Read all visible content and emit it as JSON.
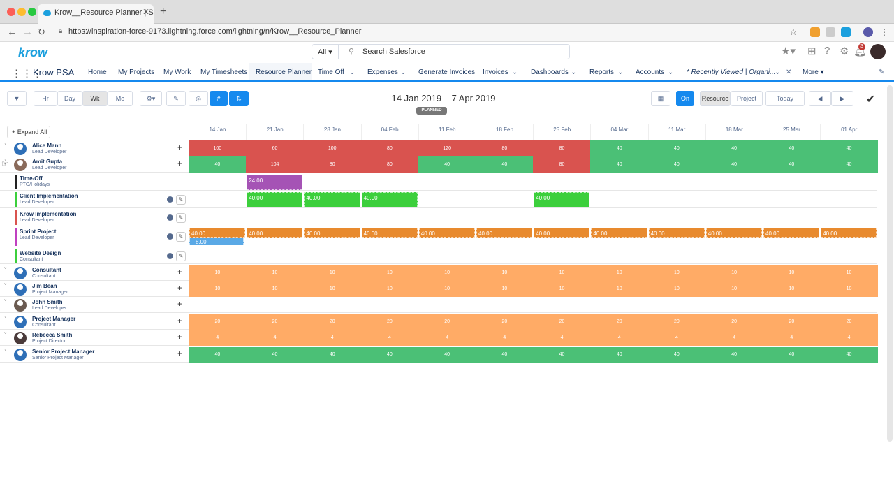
{
  "browser": {
    "tab_title": "Krow__Resource Planner | Sal",
    "url": "https://inspiration-force-9173.lightning.force.com/lightning/n/Krow__Resource_Planner"
  },
  "header": {
    "logo": "krow",
    "search_scope": "All",
    "search_placeholder": "Search Salesforce",
    "notification_count": "3"
  },
  "nav": {
    "app_name": "Krow PSA",
    "items": [
      "Home",
      "My Projects",
      "My Work",
      "My Timesheets",
      "Resource Planner",
      "Time Off",
      "Expenses",
      "Generate Invoices",
      "Invoices",
      "Dashboards",
      "Reports",
      "Accounts",
      "* Recently Viewed | Organi...",
      "More"
    ]
  },
  "toolbar": {
    "hr": "Hr",
    "day": "Day",
    "wk": "Wk",
    "mo": "Mo",
    "date_range": "14 Jan 2019 – 7 Apr 2019",
    "status_badge": "PLANNED",
    "on_toggle": "On",
    "resource_btn": "Resource",
    "project_btn": "Project",
    "today_btn": "Today",
    "expand_all": "Expand All",
    "hash_icon": "#"
  },
  "columns": [
    "14 Jan",
    "21 Jan",
    "28 Jan",
    "04 Feb",
    "11 Feb",
    "18 Feb",
    "25 Feb",
    "04 Mar",
    "11 Mar",
    "18 Mar",
    "25 Mar",
    "01 Apr"
  ],
  "colors": {
    "red": "#d9534f",
    "green": "#4bc076",
    "orange": "#ffab66",
    "proj_orange": "#e88a2e",
    "proj_green": "#3ccf3c",
    "purple": "#a553b5",
    "blue": "#5aa9e6"
  },
  "rows": [
    {
      "name": "Alice Mann",
      "role": "Lead Developer",
      "type": "resource",
      "values": [
        "100",
        "60",
        "100",
        "80",
        "120",
        "80",
        "80",
        "40",
        "40",
        "40",
        "40",
        "40"
      ],
      "colors": [
        "red",
        "red",
        "red",
        "red",
        "red",
        "red",
        "red",
        "green",
        "green",
        "green",
        "green",
        "green"
      ]
    },
    {
      "name": "Amit Gupta",
      "role": "Lead Developer",
      "type": "resource",
      "values": [
        "40",
        "104",
        "80",
        "80",
        "40",
        "40",
        "80",
        "40",
        "40",
        "40",
        "40",
        "40"
      ],
      "colors": [
        "green",
        "red",
        "red",
        "red",
        "green",
        "green",
        "red",
        "green",
        "green",
        "green",
        "green",
        "green"
      ]
    },
    {
      "name": "Time-Off",
      "role": "PTO/Holidays",
      "type": "project",
      "stripe": "#222",
      "cells": [
        {
          "col": 1,
          "span": 1,
          "value": "24.00",
          "color": "purple"
        }
      ]
    },
    {
      "name": "Client Implementation",
      "role": "Lead Developer",
      "type": "project",
      "stripe": "#3ccf3c",
      "info": true,
      "cells": [
        {
          "col": 1,
          "value": "40.00",
          "color": "proj_green"
        },
        {
          "col": 2,
          "value": "40.00",
          "color": "proj_green"
        },
        {
          "col": 3,
          "value": "40.00",
          "color": "proj_green"
        },
        {
          "col": 6,
          "value": "40.00",
          "color": "proj_green"
        }
      ]
    },
    {
      "name": "Krow Implementation",
      "role": "Lead Developer",
      "type": "project",
      "stripe": "#d9534f",
      "info": true,
      "cells": []
    },
    {
      "name": "Sprint Project",
      "role": "Lead Developer",
      "type": "project",
      "stripe": "#c040c0",
      "info": true,
      "cells": [
        {
          "col": 0,
          "value": "40.00",
          "color": "proj_orange"
        },
        {
          "col": 1,
          "value": "40.00",
          "color": "proj_orange"
        },
        {
          "col": 2,
          "value": "40.00",
          "color": "proj_orange"
        },
        {
          "col": 3,
          "value": "40.00",
          "color": "proj_orange"
        },
        {
          "col": 4,
          "value": "40.00",
          "color": "proj_orange"
        },
        {
          "col": 5,
          "value": "40.00",
          "color": "proj_orange"
        },
        {
          "col": 6,
          "value": "40.00",
          "color": "proj_orange"
        },
        {
          "col": 7,
          "value": "40.00",
          "color": "proj_orange"
        },
        {
          "col": 8,
          "value": "40.00",
          "color": "proj_orange"
        },
        {
          "col": 9,
          "value": "40.00",
          "color": "proj_orange"
        },
        {
          "col": 10,
          "value": "40.00",
          "color": "proj_orange"
        },
        {
          "col": 11,
          "value": "40.00",
          "color": "proj_orange"
        }
      ],
      "sub": {
        "col": 0,
        "value": "8.00",
        "color": "blue"
      }
    },
    {
      "name": "Website Design",
      "role": "Consultant",
      "type": "project",
      "stripe": "#3ccf3c",
      "info": true,
      "cells": []
    },
    {
      "name": "Consultant",
      "role": "Consultant",
      "type": "resource",
      "values": [
        "10",
        "10",
        "10",
        "10",
        "10",
        "10",
        "10",
        "10",
        "10",
        "10",
        "10",
        "10"
      ],
      "colors": [
        "orange",
        "orange",
        "orange",
        "orange",
        "orange",
        "orange",
        "orange",
        "orange",
        "orange",
        "orange",
        "orange",
        "orange"
      ]
    },
    {
      "name": "Jim Bean",
      "role": "Project Manager",
      "type": "resource",
      "values": [
        "10",
        "10",
        "10",
        "10",
        "10",
        "10",
        "10",
        "10",
        "10",
        "10",
        "10",
        "10"
      ],
      "colors": [
        "orange",
        "orange",
        "orange",
        "orange",
        "orange",
        "orange",
        "orange",
        "orange",
        "orange",
        "orange",
        "orange",
        "orange"
      ]
    },
    {
      "name": "John Smith",
      "role": "Lead Developer",
      "type": "resource",
      "values": [],
      "colors": []
    },
    {
      "name": "Project Manager",
      "role": "Consultant",
      "type": "resource",
      "values": [
        "20",
        "20",
        "20",
        "20",
        "20",
        "20",
        "20",
        "20",
        "20",
        "20",
        "20",
        "20"
      ],
      "colors": [
        "orange",
        "orange",
        "orange",
        "orange",
        "orange",
        "orange",
        "orange",
        "orange",
        "orange",
        "orange",
        "orange",
        "orange"
      ]
    },
    {
      "name": "Rebecca Smith",
      "role": "Project Director",
      "type": "resource",
      "values": [
        "4",
        "4",
        "4",
        "4",
        "4",
        "4",
        "4",
        "4",
        "4",
        "4",
        "4",
        "4"
      ],
      "colors": [
        "orange",
        "orange",
        "orange",
        "orange",
        "orange",
        "orange",
        "orange",
        "orange",
        "orange",
        "orange",
        "orange",
        "orange"
      ]
    },
    {
      "name": "Senior Project Manager",
      "role": "Senior Project Manager",
      "type": "resource",
      "values": [
        "40",
        "40",
        "40",
        "40",
        "40",
        "40",
        "40",
        "40",
        "40",
        "40",
        "40",
        "40"
      ],
      "colors": [
        "green",
        "green",
        "green",
        "green",
        "green",
        "green",
        "green",
        "green",
        "green",
        "green",
        "green",
        "green"
      ]
    }
  ]
}
